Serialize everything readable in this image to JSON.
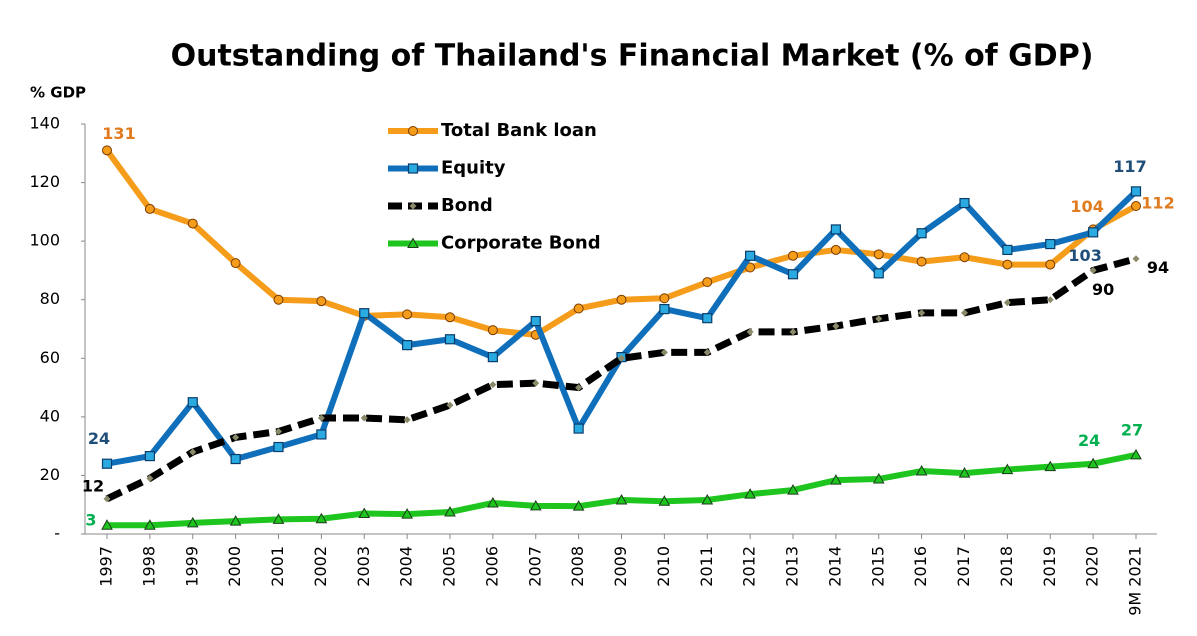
{
  "chart_data": {
    "type": "line",
    "title": "Outstanding of Thailand's Financial Market  (% of GDP)",
    "y_axis_label": "% GDP",
    "categories": [
      "1997",
      "1998",
      "1999",
      "2000",
      "2001",
      "2002",
      "2003",
      "2004",
      "2005",
      "2006",
      "2007",
      "2008",
      "2009",
      "2010",
      "2011",
      "2012",
      "2013",
      "2014",
      "2015",
      "2016",
      "2017",
      "2018",
      "2019",
      "2020",
      "9M 2021"
    ],
    "ylim": [
      0,
      140
    ],
    "yticks": [
      {
        "value": 0,
        "label": "-"
      },
      20,
      40,
      60,
      80,
      100,
      120,
      140
    ],
    "legend": "upper left",
    "series": [
      {
        "name": "Total Bank loan",
        "color": "#f59c1a",
        "marker": "circle",
        "label_color": "#e07b1f",
        "labeled_points": [
          0,
          23,
          24
        ],
        "values": [
          131,
          111,
          106,
          92.5,
          80,
          79.5,
          74.5,
          75,
          74,
          69.6,
          68,
          77,
          80,
          80.5,
          86,
          91,
          95,
          97,
          95.5,
          93,
          94.5,
          92,
          92,
          104,
          112
        ]
      },
      {
        "name": "Equity",
        "color": "#0f6fba",
        "marker": "square",
        "label_color": "#1f4e79",
        "labeled_points": [
          0,
          23,
          24
        ],
        "values": [
          24,
          26.6,
          45,
          25.6,
          29.7,
          34,
          75.4,
          64.5,
          66.5,
          60.4,
          72.7,
          36,
          60.4,
          76.8,
          73.7,
          95,
          88.7,
          104,
          89,
          102.7,
          113,
          97,
          99,
          103,
          117
        ]
      },
      {
        "name": "Bond",
        "color": "#000000",
        "marker": "diamond",
        "dashed": true,
        "label_color": "#000000",
        "labeled_points": [
          0,
          23,
          24
        ],
        "values": [
          12,
          19,
          28,
          33,
          35,
          39.6,
          39.6,
          39,
          44,
          51,
          51.5,
          50,
          60,
          62,
          62,
          69,
          69,
          71,
          73.5,
          75.5,
          75.5,
          79,
          80,
          90,
          94
        ]
      },
      {
        "name": "Corporate Bond",
        "color": "#1ec51e",
        "marker": "triangle",
        "label_color": "#00b050",
        "labeled_points": [
          0,
          23,
          24
        ],
        "values": [
          3,
          3,
          3.8,
          4.4,
          5,
          5.2,
          7,
          6.8,
          7.5,
          10.6,
          9.6,
          9.5,
          11.6,
          11.2,
          11.6,
          13.6,
          15,
          18.4,
          18.8,
          21.5,
          20.8,
          22,
          23,
          24,
          27
        ]
      }
    ]
  }
}
